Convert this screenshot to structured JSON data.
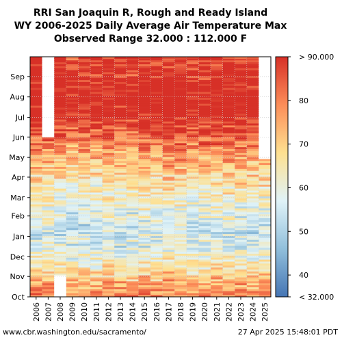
{
  "title": {
    "line1": "RRI San Joaquin R, Rough and Ready Island",
    "line2": "WY 2006-2025 Daily Average Air Temperature Max",
    "line3": "Observed Range 32.000 : 112.000 F"
  },
  "footer": {
    "source": "www.cbr.washington.edu/sacramento/",
    "timestamp": "27 Apr 2025 15:48:01 PDT"
  },
  "chart_data": {
    "type": "heatmap",
    "x": [
      "2006",
      "2007",
      "2008",
      "2009",
      "2010",
      "2011",
      "2012",
      "2013",
      "2014",
      "2015",
      "2016",
      "2017",
      "2018",
      "2019",
      "2020",
      "2021",
      "2022",
      "2023",
      "2024",
      "2025"
    ],
    "y_ticks": [
      "Oct",
      "Nov",
      "Dec",
      "Jan",
      "Feb",
      "Mar",
      "Apr",
      "May",
      "Jun",
      "Jul",
      "Aug",
      "Sep"
    ],
    "colorbar": {
      "ticks": [
        "40",
        "50",
        "60",
        "70",
        "80"
      ],
      "top_label": "> 90.000",
      "bottom_label": "< 32.000",
      "range": [
        35,
        90
      ],
      "colors": [
        "#4575b4",
        "#91bfdb",
        "#e0f3f8",
        "#fee090",
        "#fc8d59",
        "#d73027"
      ]
    },
    "monthly_typical_max_F": {
      "Oct": 76,
      "Nov": 65,
      "Dec": 56,
      "Jan": 55,
      "Feb": 60,
      "Mar": 65,
      "Apr": 72,
      "May": 80,
      "Jun": 88,
      "Jul": 94,
      "Aug": 93,
      "Sep": 89
    },
    "missing_data": [
      {
        "year": "2007",
        "from": "Jun 1",
        "to": "Sep 30"
      },
      {
        "year": "2008",
        "from": "Oct 1",
        "to": "Oct 31"
      },
      {
        "year": "2025",
        "from": "Apr 27",
        "to": "Sep 30"
      }
    ],
    "observed_range": [
      32,
      112
    ]
  },
  "colors": {
    "grid": "#d0d0d0",
    "missing": "#ffffff"
  }
}
